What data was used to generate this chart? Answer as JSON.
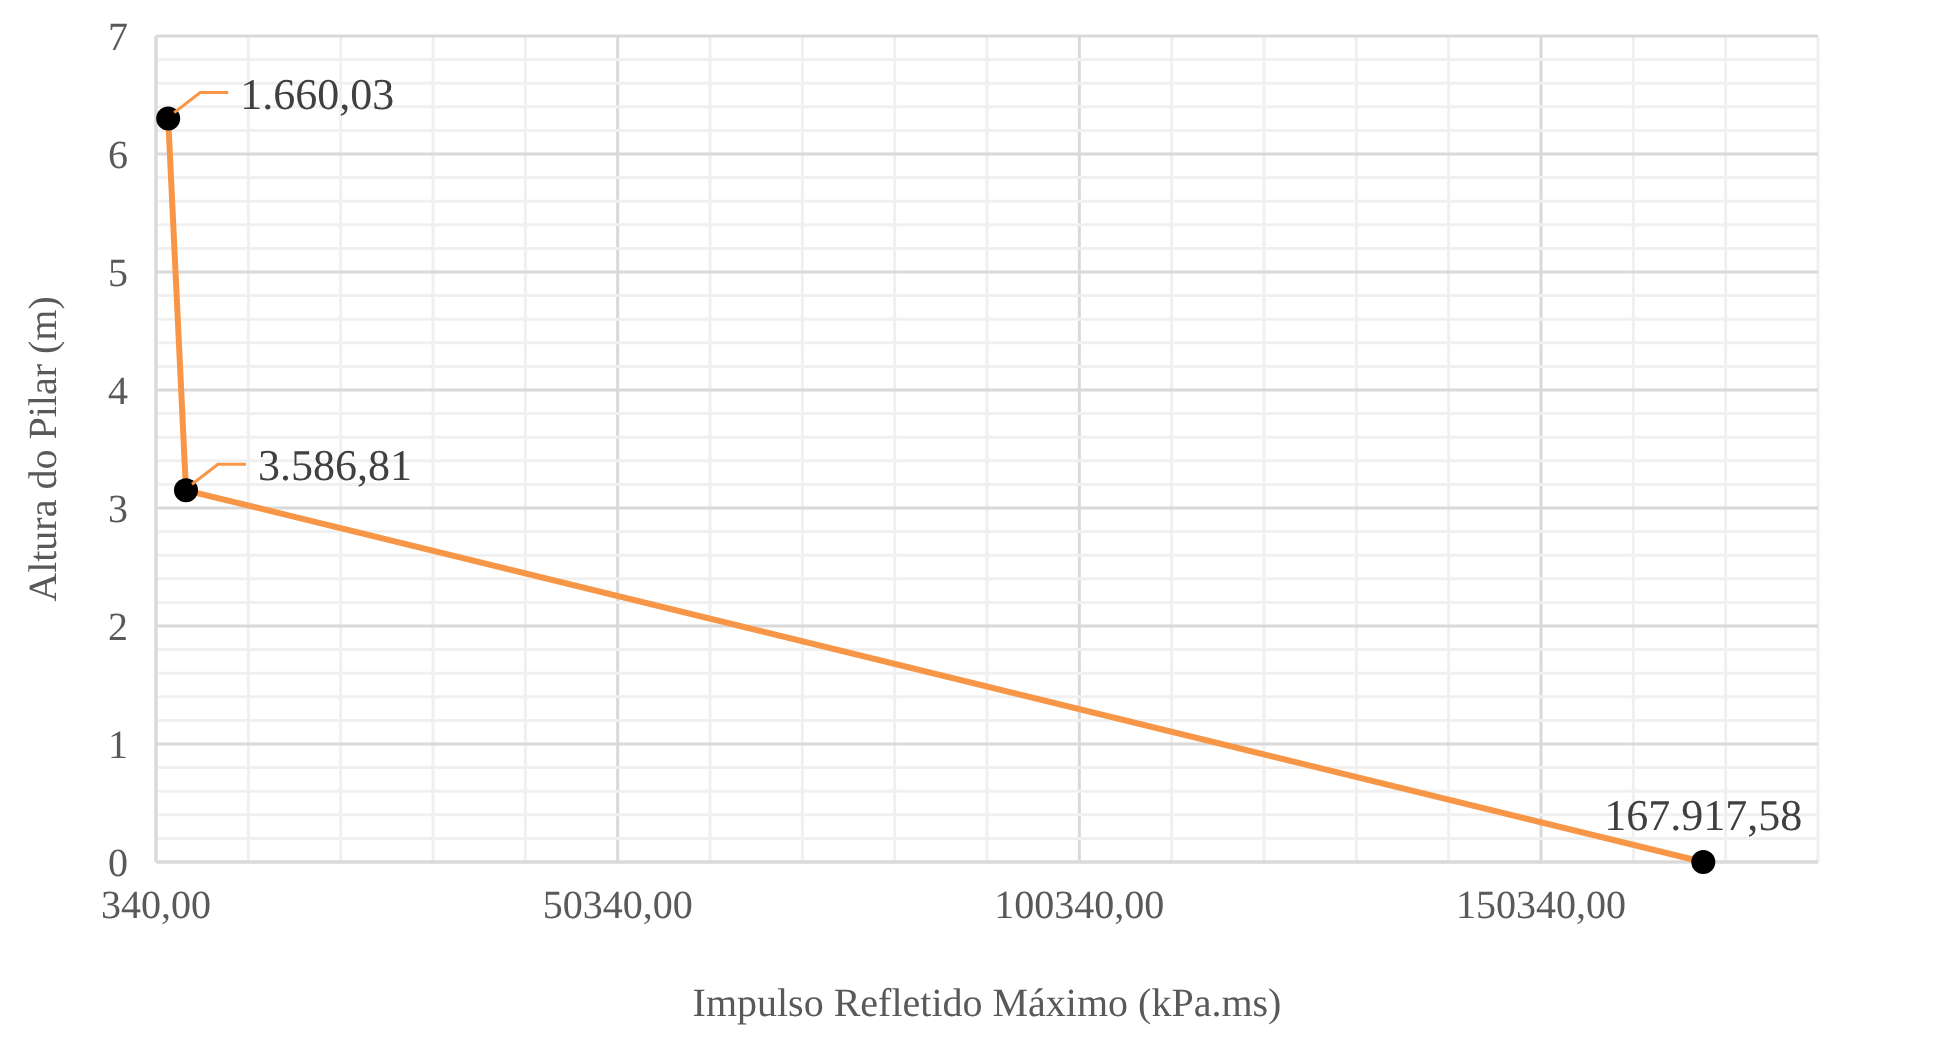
{
  "chart_data": {
    "type": "line",
    "xlabel": "Impulso Refletido Máximo (kPa.ms)",
    "ylabel": "Altura do Pilar (m)",
    "x": [
      1660.03,
      3586.81,
      167917.58
    ],
    "series": [
      {
        "color": "#f79646",
        "values": [
          6.3,
          3.15,
          0
        ]
      }
    ],
    "annotations": [
      {
        "text": "1.660,03",
        "x": 1660.03,
        "y": 6.3
      },
      {
        "text": "3.586,81",
        "x": 3586.81,
        "y": 3.15
      },
      {
        "text": "167.917,58",
        "x": 167917.58,
        "y": 0
      }
    ],
    "marker": "circle",
    "grid": true,
    "xlim": [
      340,
      180340
    ],
    "xticks": [
      {
        "value": 340,
        "label": "340,00"
      },
      {
        "value": 10340,
        "label": null
      },
      {
        "value": 20340,
        "label": null
      },
      {
        "value": 30340,
        "label": null
      },
      {
        "value": 40340,
        "label": null
      },
      {
        "value": 50340,
        "label": "50340,00"
      },
      {
        "value": 60340,
        "label": null
      },
      {
        "value": 70340,
        "label": null
      },
      {
        "value": 80340,
        "label": null
      },
      {
        "value": 90340,
        "label": null
      },
      {
        "value": 100340,
        "label": "100340,00"
      },
      {
        "value": 110340,
        "label": null
      },
      {
        "value": 120340,
        "label": null
      },
      {
        "value": 130340,
        "label": null
      },
      {
        "value": 140340,
        "label": null
      },
      {
        "value": 150340,
        "label": "150340,00"
      },
      {
        "value": 160340,
        "label": null
      },
      {
        "value": 170340,
        "label": null
      },
      {
        "value": 180340,
        "label": null
      }
    ],
    "ylim": [
      0,
      7
    ],
    "yticks": [
      0,
      {
        "value": 0.2,
        "label": null
      },
      {
        "value": 0.4,
        "label": null
      },
      {
        "value": 0.6,
        "label": null
      },
      {
        "value": 0.8,
        "label": null
      },
      1,
      {
        "value": 1.2,
        "label": null
      },
      {
        "value": 1.4,
        "label": null
      },
      {
        "value": 1.6,
        "label": null
      },
      {
        "value": 1.8,
        "label": null
      },
      2,
      {
        "value": 2.2,
        "label": null
      },
      {
        "value": 2.4,
        "label": null
      },
      {
        "value": 2.6,
        "label": null
      },
      {
        "value": 2.8,
        "label": null
      },
      3,
      {
        "value": 3.2,
        "label": null
      },
      {
        "value": 3.4,
        "label": null
      },
      {
        "value": 3.6,
        "label": null
      },
      {
        "value": 3.8,
        "label": null
      },
      4,
      {
        "value": 4.2,
        "label": null
      },
      {
        "value": 4.4,
        "label": null
      },
      {
        "value": 4.6,
        "label": null
      },
      {
        "value": 4.8,
        "label": null
      },
      5,
      {
        "value": 5.2,
        "label": null
      },
      {
        "value": 5.4,
        "label": null
      },
      {
        "value": 5.6,
        "label": null
      },
      {
        "value": 5.8,
        "label": null
      },
      6,
      {
        "value": 6.2,
        "label": null
      },
      {
        "value": 6.4,
        "label": null
      },
      {
        "value": 6.6,
        "label": null
      },
      {
        "value": 6.8,
        "label": null
      },
      7
    ]
  }
}
